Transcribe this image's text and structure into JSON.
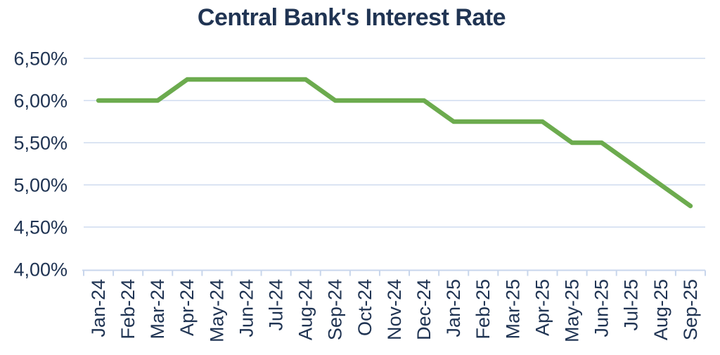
{
  "colors": {
    "title_text": "#203453",
    "axis_text": "#203453",
    "line": "#6cab4e",
    "gridline": "#dbe4f3",
    "axis_line": "#c8d6ec"
  },
  "chart_data": {
    "type": "line",
    "title": "Central Bank's Interest Rate",
    "categories": [
      "Jan-24",
      "Feb-24",
      "Mar-24",
      "Apr-24",
      "May-24",
      "Jun-24",
      "Jul-24",
      "Aug-24",
      "Sep-24",
      "Oct-24",
      "Nov-24",
      "Dec-24",
      "Jan-25",
      "Feb-25",
      "Mar-25",
      "Apr-25",
      "May-25",
      "Jun-25",
      "Jul-25",
      "Aug-25",
      "Sep-25"
    ],
    "series": [
      {
        "name": "Central Bank's Interest Rate",
        "values": [
          6.0,
          6.0,
          6.0,
          6.25,
          6.25,
          6.25,
          6.25,
          6.25,
          6.0,
          6.0,
          6.0,
          6.0,
          5.75,
          5.75,
          5.75,
          5.75,
          5.5,
          5.5,
          5.25,
          5.0,
          4.75
        ]
      }
    ],
    "ylim": [
      4.0,
      6.5
    ],
    "yticks": [
      {
        "value": 6.5,
        "label": "6,50%"
      },
      {
        "value": 6.0,
        "label": "6,00%"
      },
      {
        "value": 5.5,
        "label": "5,50%"
      },
      {
        "value": 5.0,
        "label": "5,00%"
      },
      {
        "value": 4.5,
        "label": "4,50%"
      },
      {
        "value": 4.0,
        "label": "4,00%"
      }
    ],
    "grid": true,
    "legend": "none",
    "x_label_rotation": -90
  }
}
